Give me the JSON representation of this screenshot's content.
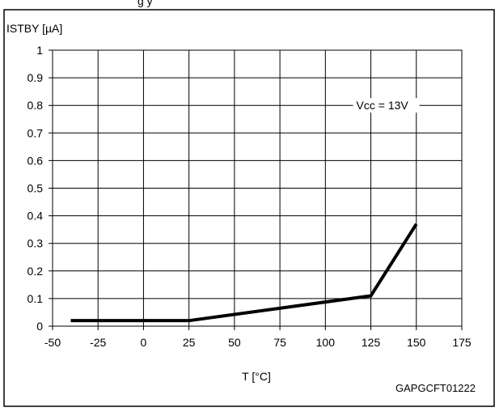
{
  "header_fragment": "g           y",
  "chart_data": {
    "type": "line",
    "title": "",
    "ylabel": "ISTBY [µA]",
    "xlabel": "T [°C]",
    "xlim": [
      -50,
      175
    ],
    "ylim": [
      0,
      1
    ],
    "x_ticks": [
      -50,
      -25,
      0,
      25,
      50,
      75,
      100,
      125,
      150,
      175
    ],
    "y_ticks": [
      0,
      0.1,
      0.2,
      0.3,
      0.4,
      0.5,
      0.6,
      0.7,
      0.8,
      0.9,
      1
    ],
    "x_tick_labels": [
      "-50",
      "-25",
      "0",
      "25",
      "50",
      "75",
      "100",
      "125",
      "150",
      "175"
    ],
    "y_tick_labels": [
      "0",
      "0.1",
      "0.2",
      "0.3",
      "0.4",
      "0.5",
      "0.6",
      "0.7",
      "0.8",
      "0.9",
      "1"
    ],
    "grid": true,
    "series": [
      {
        "x": [
          -40,
          25,
          125,
          150
        ],
        "y": [
          0.02,
          0.02,
          0.11,
          0.37
        ]
      }
    ],
    "annotation": {
      "text": "Vcc = 13V",
      "x": 125,
      "y": 0.8
    },
    "figure_code": "GAPGCFT01222"
  }
}
